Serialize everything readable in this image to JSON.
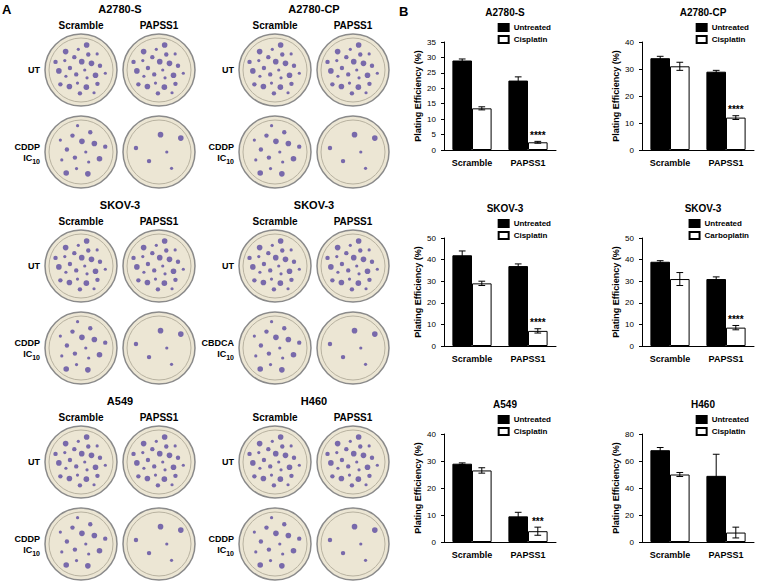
{
  "panel_labels": {
    "a": "A",
    "b": "B"
  },
  "plates": [
    {
      "title": "A2780-S",
      "columns": [
        "Scramble",
        "PAPSS1"
      ],
      "rows": [
        {
          "label": [
            "UT"
          ]
        },
        {
          "label": [
            "CDDP",
            "IC"
          ],
          "subscript": "10"
        }
      ]
    },
    {
      "title": "A2780-CP",
      "columns": [
        "Scramble",
        "PAPSS1"
      ],
      "rows": [
        {
          "label": [
            "UT"
          ]
        },
        {
          "label": [
            "CDDP",
            "IC"
          ],
          "subscript": "10"
        }
      ]
    },
    {
      "title": "SKOV-3",
      "columns": [
        "Scramble",
        "PAPSS1"
      ],
      "rows": [
        {
          "label": [
            "UT"
          ]
        },
        {
          "label": [
            "CDDP",
            "IC"
          ],
          "subscript": "10"
        }
      ]
    },
    {
      "title": "SKOV-3",
      "columns": [
        "Scramble",
        "PAPSS1"
      ],
      "rows": [
        {
          "label": [
            "UT"
          ]
        },
        {
          "label": [
            "CBDCA",
            "IC"
          ],
          "subscript": "10"
        }
      ]
    },
    {
      "title": "A549",
      "columns": [
        "Scramble",
        "PAPSS1"
      ],
      "rows": [
        {
          "label": [
            "UT"
          ]
        },
        {
          "label": [
            "CDDP",
            "IC"
          ],
          "subscript": "10"
        }
      ]
    },
    {
      "title": "H460",
      "columns": [
        "Scramble",
        "PAPSS1"
      ],
      "rows": [
        {
          "label": [
            "UT"
          ]
        },
        {
          "label": [
            "CDDP",
            "IC"
          ],
          "subscript": "10"
        }
      ]
    }
  ],
  "chart_data": [
    {
      "type": "bar",
      "title": "A2780-S",
      "ylabel": "Plating Efficiency (%)",
      "categories": [
        "Scramble",
        "PAPSS1"
      ],
      "ylim": [
        0,
        35
      ],
      "yticks": [
        0,
        5,
        10,
        15,
        20,
        25,
        30,
        35
      ],
      "grid": false,
      "legend": "upper right",
      "series": [
        {
          "name": "Untreated",
          "color": "#000000",
          "values": [
            29,
            22.5
          ],
          "errors": [
            0.5,
            1.2
          ]
        },
        {
          "name": "Cisplatin",
          "color": "#ffffff",
          "values": [
            13.5,
            2.5
          ],
          "errors": [
            0.5,
            0.3
          ]
        }
      ],
      "annotations": [
        {
          "category": "PAPSS1",
          "series": "Cisplatin",
          "text": "****"
        }
      ]
    },
    {
      "type": "bar",
      "title": "A2780-CP",
      "ylabel": "Plating Efficiency (%)",
      "categories": [
        "Scramble",
        "PAPSS1"
      ],
      "ylim": [
        0,
        40
      ],
      "yticks": [
        0,
        10,
        20,
        30,
        40
      ],
      "grid": false,
      "legend": "upper right",
      "series": [
        {
          "name": "Untreated",
          "color": "#000000",
          "values": [
            34,
            29
          ],
          "errors": [
            0.7,
            0.5
          ]
        },
        {
          "name": "Cisplatin",
          "color": "#ffffff",
          "values": [
            31,
            12
          ],
          "errors": [
            1.5,
            0.7
          ]
        }
      ],
      "annotations": [
        {
          "category": "PAPSS1",
          "series": "Cisplatin",
          "text": "****"
        }
      ]
    },
    {
      "type": "bar",
      "title": "SKOV-3",
      "ylabel": "Plating Efficiency (%)",
      "categories": [
        "Scramble",
        "PAPSS1"
      ],
      "ylim": [
        0,
        50
      ],
      "yticks": [
        0,
        10,
        20,
        30,
        40,
        50
      ],
      "grid": false,
      "legend": "upper right",
      "series": [
        {
          "name": "Untreated",
          "color": "#000000",
          "values": [
            42,
            37
          ],
          "errors": [
            2,
            1
          ]
        },
        {
          "name": "Cisplatin",
          "color": "#ffffff",
          "values": [
            29,
            7
          ],
          "errors": [
            1,
            1
          ]
        }
      ],
      "annotations": [
        {
          "category": "PAPSS1",
          "series": "Cisplatin",
          "text": "****"
        }
      ]
    },
    {
      "type": "bar",
      "title": "SKOV-3",
      "ylabel": "Plating Efficiency (%)",
      "categories": [
        "Scramble",
        "PAPSS1"
      ],
      "ylim": [
        0,
        50
      ],
      "yticks": [
        0,
        10,
        20,
        30,
        40,
        50
      ],
      "grid": false,
      "legend": "upper right",
      "series": [
        {
          "name": "Untreated",
          "color": "#000000",
          "values": [
            39,
            31
          ],
          "errors": [
            0.5,
            1
          ]
        },
        {
          "name": "Carboplatin",
          "color": "#ffffff",
          "values": [
            31,
            8.5
          ],
          "errors": [
            3,
            1
          ]
        }
      ],
      "annotations": [
        {
          "category": "PAPSS1",
          "series": "Carboplatin",
          "text": "****"
        }
      ]
    },
    {
      "type": "bar",
      "title": "A549",
      "ylabel": "Plating Efficiency (%)",
      "categories": [
        "Scramble",
        "PAPSS1"
      ],
      "ylim": [
        0,
        40
      ],
      "yticks": [
        0,
        10,
        20,
        30,
        40
      ],
      "grid": false,
      "legend": "upper right",
      "series": [
        {
          "name": "Untreated",
          "color": "#000000",
          "values": [
            29,
            9.5
          ],
          "errors": [
            0.3,
            1.5
          ]
        },
        {
          "name": "Cisplatin",
          "color": "#ffffff",
          "values": [
            26.5,
            4
          ],
          "errors": [
            1,
            1.5
          ]
        }
      ],
      "annotations": [
        {
          "category": "PAPSS1",
          "series": "Cisplatin",
          "text": "***"
        }
      ]
    },
    {
      "type": "bar",
      "title": "H460",
      "ylabel": "Plating Efficiency (%)",
      "categories": [
        "Scramble",
        "PAPSS1"
      ],
      "ylim": [
        0,
        80
      ],
      "yticks": [
        0,
        20,
        40,
        60,
        80
      ],
      "grid": false,
      "legend": "upper right",
      "series": [
        {
          "name": "Untreated",
          "color": "#000000",
          "values": [
            68,
            49
          ],
          "errors": [
            2,
            16
          ]
        },
        {
          "name": "Cisplatin",
          "color": "#ffffff",
          "values": [
            50,
            7
          ],
          "errors": [
            1.5,
            4
          ]
        }
      ],
      "annotations": []
    }
  ]
}
